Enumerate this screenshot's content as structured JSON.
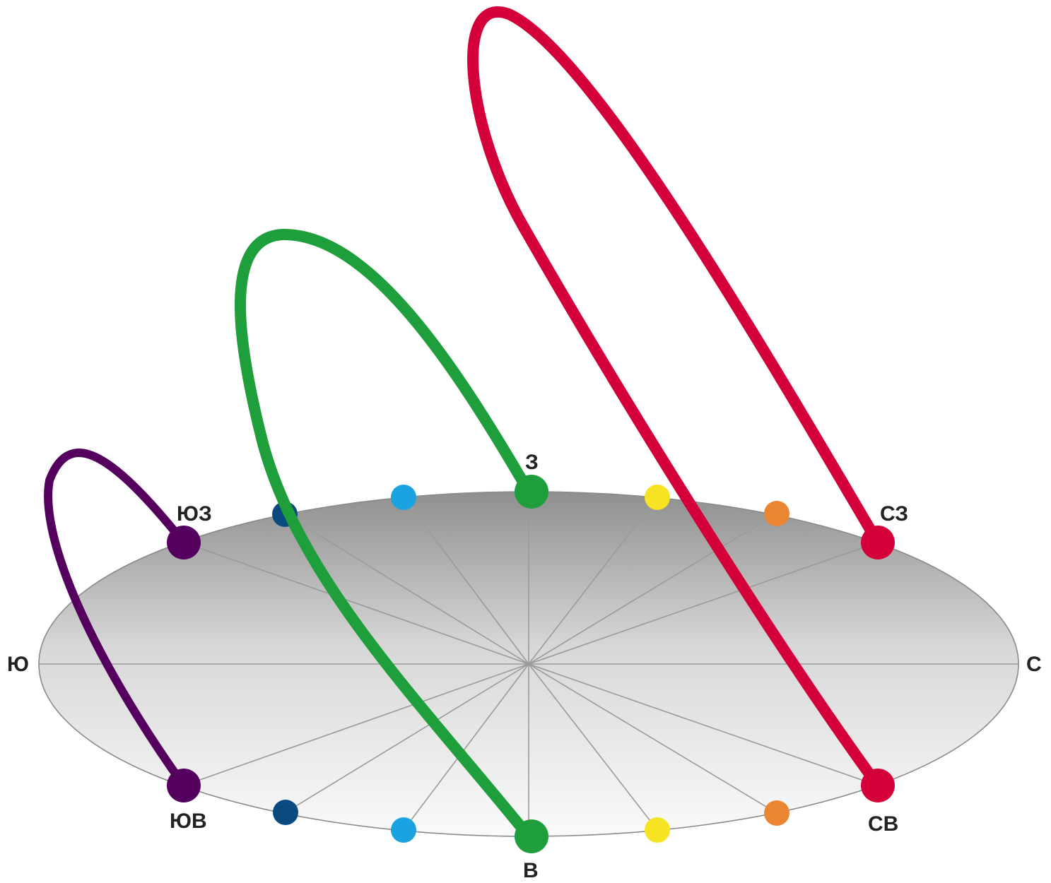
{
  "directions": {
    "south": "Ю",
    "north": "С",
    "west": "З",
    "east": "В",
    "southwest": "ЮЗ",
    "southeast": "ЮВ",
    "northwest": "СЗ",
    "northeast": "СВ"
  },
  "colors": {
    "disc_top": "#8f8f8f",
    "disc_mid": "#d7d7d7",
    "disc_bottom": "#fafafa",
    "spoke": "#9a9a9a",
    "purple": "#55005f",
    "green": "#1f9e3c",
    "red": "#d4003a",
    "dark_blue": "#0a4a7e",
    "light_blue": "#1aa3e0",
    "yellow": "#f6e323",
    "orange": "#ea8631"
  },
  "arcs": [
    {
      "color": "purple",
      "from": "southwest",
      "to": "southeast"
    },
    {
      "color": "green",
      "from": "west",
      "to": "east"
    },
    {
      "color": "red",
      "from": "northwest",
      "to": "northeast"
    }
  ],
  "markers": [
    {
      "color": "dark_blue"
    },
    {
      "color": "light_blue"
    },
    {
      "color": "yellow"
    },
    {
      "color": "orange"
    }
  ]
}
